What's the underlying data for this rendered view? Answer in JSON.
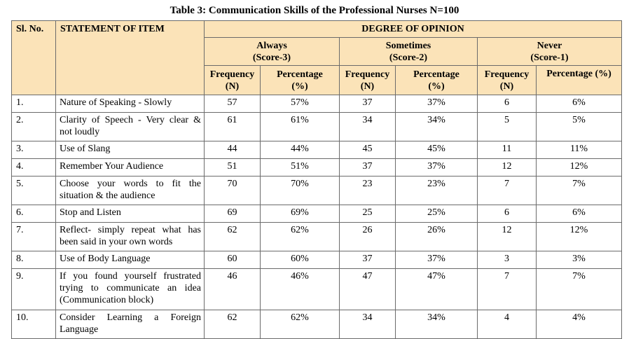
{
  "caption": "Table 3: Communication Skills of the Professional Nurses N=100",
  "headers": {
    "sl_no": "Sl. No.",
    "statement": "STATEMENT OF ITEM",
    "degree": "DEGREE OF OPINION",
    "groups": [
      {
        "name": "Always",
        "score": "(Score-3)"
      },
      {
        "name": "Sometimes",
        "score": "(Score-2)"
      },
      {
        "name": "Never",
        "score": "(Score-1)"
      }
    ],
    "freq_label": "Frequency",
    "freq_unit": "(N)",
    "pct_label": "Percentage",
    "pct_unit": "(%)",
    "pct_label_full": "Percentage (%)"
  },
  "rows": [
    {
      "sl": "1.",
      "statement": "Nature of Speaking - Slowly",
      "af": "57",
      "ap": "57%",
      "sf": "37",
      "sp": "37%",
      "nf": "6",
      "np": "6%"
    },
    {
      "sl": "2.",
      "statement": "Clarity of Speech - Very clear & not loudly",
      "af": "61",
      "ap": "61%",
      "sf": "34",
      "sp": "34%",
      "nf": "5",
      "np": "5%"
    },
    {
      "sl": "3.",
      "statement": "Use of Slang",
      "af": "44",
      "ap": "44%",
      "sf": "45",
      "sp": "45%",
      "nf": "11",
      "np": "11%"
    },
    {
      "sl": "4.",
      "statement": "Remember Your Audience",
      "af": "51",
      "ap": "51%",
      "sf": "37",
      "sp": "37%",
      "nf": "12",
      "np": "12%"
    },
    {
      "sl": "5.",
      "statement": "Choose your words to fit the situation & the audience",
      "af": "70",
      "ap": "70%",
      "sf": "23",
      "sp": "23%",
      "nf": "7",
      "np": "7%"
    },
    {
      "sl": "6.",
      "statement": "Stop and Listen",
      "af": "69",
      "ap": "69%",
      "sf": "25",
      "sp": "25%",
      "nf": "6",
      "np": "6%"
    },
    {
      "sl": "7.",
      "statement": "Reflect- simply repeat what has been said in your own words",
      "af": "62",
      "ap": "62%",
      "sf": "26",
      "sp": "26%",
      "nf": "12",
      "np": "12%"
    },
    {
      "sl": "8.",
      "statement": "Use of Body Language",
      "af": "60",
      "ap": "60%",
      "sf": "37",
      "sp": "37%",
      "nf": "3",
      "np": "3%"
    },
    {
      "sl": "9.",
      "statement": "If you found yourself frustrated trying to communicate an idea (Communication block)",
      "af": "46",
      "ap": "46%",
      "sf": "47",
      "sp": "47%",
      "nf": "7",
      "np": "7%"
    },
    {
      "sl": "10.",
      "statement": "Consider Learning a Foreign Language",
      "af": "62",
      "ap": "62%",
      "sf": "34",
      "sp": "34%",
      "nf": "4",
      "np": "4%"
    }
  ]
}
